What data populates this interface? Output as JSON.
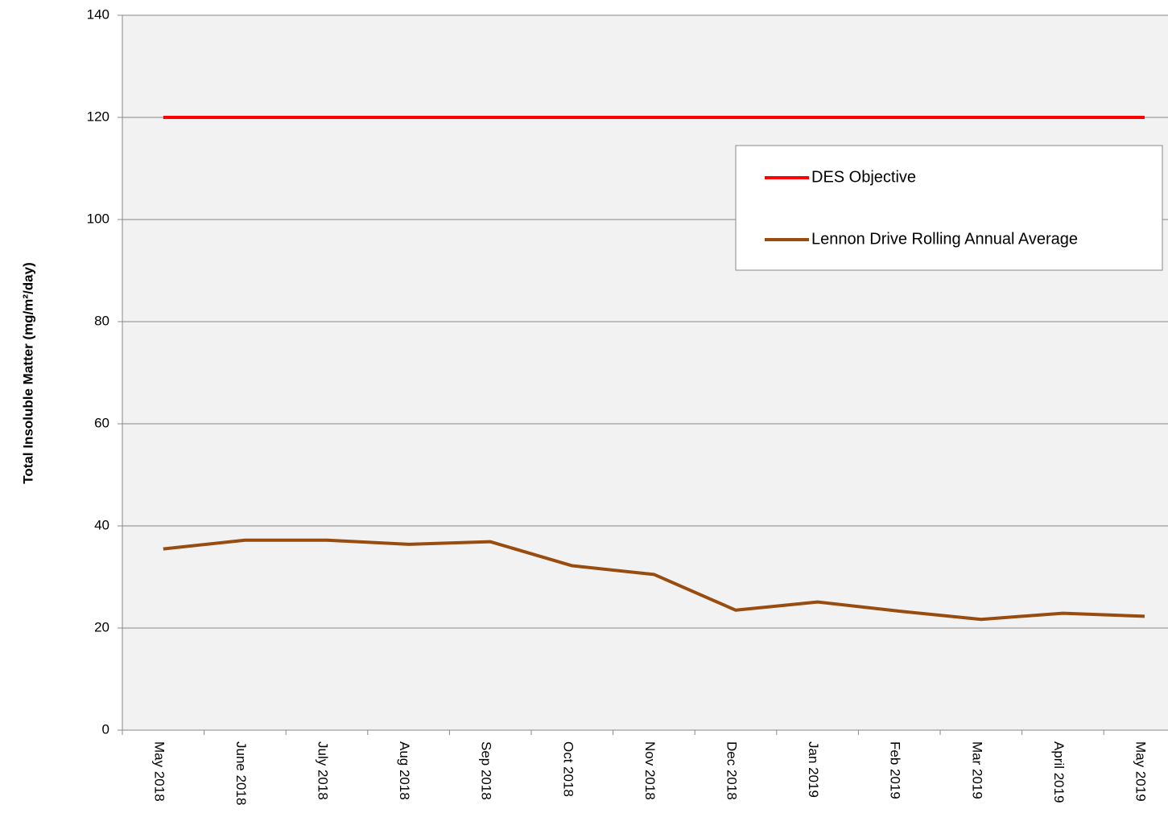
{
  "chart_data": {
    "type": "line",
    "ylabel": "Total Insoluble Matter (mg/m²/day)",
    "categories": [
      "May 2018",
      "June 2018",
      "July 2018",
      "Aug 2018",
      "Sep 2018",
      "Oct 2018",
      "Nov 2018",
      "Dec 2018",
      "Jan 2019",
      "Feb 2019",
      "Mar 2019",
      "April 2019",
      "May 2019"
    ],
    "series": [
      {
        "name": "DES Objective",
        "color": "#ff0000",
        "values": [
          120,
          120,
          120,
          120,
          120,
          120,
          120,
          120,
          120,
          120,
          120,
          120,
          120
        ]
      },
      {
        "name": "Lennon Drive Rolling Annual Average",
        "color": "#994c0f",
        "values": [
          35.5,
          37.2,
          37.2,
          36.4,
          36.9,
          32.2,
          30.5,
          23.5,
          25.1,
          23.3,
          21.7,
          22.9,
          22.3
        ]
      }
    ],
    "ylim": [
      0,
      140
    ],
    "yticks": [
      0,
      20,
      40,
      60,
      80,
      100,
      120,
      140
    ],
    "grid": true,
    "legend": "upper right"
  }
}
